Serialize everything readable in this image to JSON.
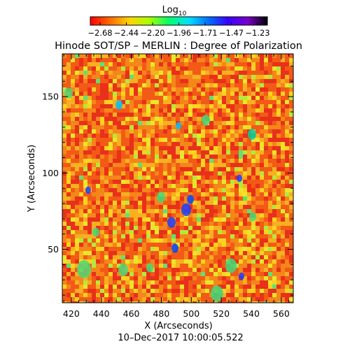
{
  "title": "Hinode SOT/SP – MERLIN : Degree of Polarization",
  "colorbar": {
    "label_base": "Log",
    "label_sub": "10",
    "ticks": [
      "−2.68",
      "−2.44",
      "−2.20",
      "−1.96",
      "−1.71",
      "−1.47",
      "−1.23"
    ],
    "stops": [
      "#ff0000",
      "#ff6a00",
      "#ffd400",
      "#a8ff00",
      "#00ff66",
      "#00e0ff",
      "#0070ff",
      "#3a00ff",
      "#7a00c8",
      "#000000"
    ]
  },
  "axes": {
    "xlabel": "X (Arcseconds)",
    "ylabel": "Y (Arcseconds)",
    "x_ticks": [
      420,
      440,
      460,
      480,
      500,
      520,
      540,
      560
    ],
    "y_ticks": [
      50,
      100,
      150
    ],
    "x_range": [
      414,
      568
    ],
    "y_range": [
      15,
      178
    ]
  },
  "timestamp": "10–Dec–2017 10:00:05.522"
}
